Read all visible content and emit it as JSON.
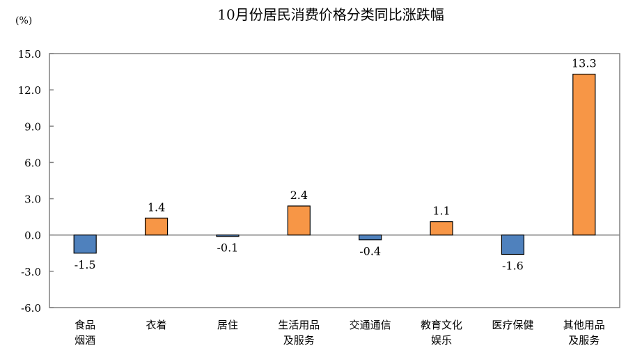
{
  "chart_data": {
    "type": "bar",
    "title": "10月份居民消费价格分类同比涨跌幅",
    "unit_label": "(%)",
    "xlabel": "",
    "ylabel": "(%)",
    "ylim": [
      -6.0,
      15.0
    ],
    "yticks": [
      15.0,
      12.0,
      9.0,
      6.0,
      3.0,
      0.0,
      -3.0,
      -6.0
    ],
    "ytick_labels": [
      "15.0",
      "12.0",
      "9.0",
      "6.0",
      "3.0",
      "0.0",
      "-3.0",
      "-6.0"
    ],
    "grid": false,
    "legend": null,
    "categories": [
      [
        "食品",
        "烟酒"
      ],
      [
        "衣着"
      ],
      [
        "居住"
      ],
      [
        "生活用品",
        "及服务"
      ],
      [
        "交通通信"
      ],
      [
        "教育文化",
        "娱乐"
      ],
      [
        "医疗保健"
      ],
      [
        "其他用品",
        "及服务"
      ]
    ],
    "values": [
      -1.5,
      1.4,
      -0.1,
      2.4,
      -0.4,
      1.1,
      -1.6,
      13.3
    ],
    "value_labels": [
      "-1.5",
      "1.4",
      "-0.1",
      "2.4",
      "-0.4",
      "1.1",
      "-1.6",
      "13.3"
    ],
    "colors": {
      "positive": "#F79646",
      "negative": "#4F81BD",
      "axis": "#808080",
      "bar_border": "#000000"
    }
  }
}
